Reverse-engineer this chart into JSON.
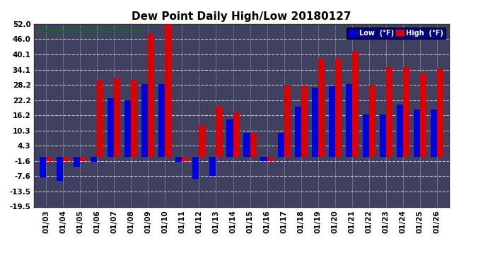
{
  "title": "Dew Point Daily High/Low 20180127",
  "copyright": "Copyright 2018 Cartronics.com",
  "dates": [
    "01/03",
    "01/04",
    "01/05",
    "01/06",
    "01/07",
    "01/08",
    "01/09",
    "01/10",
    "01/11",
    "01/12",
    "01/13",
    "01/14",
    "01/15",
    "01/16",
    "01/17",
    "01/18",
    "01/19",
    "01/20",
    "01/21",
    "01/22",
    "01/23",
    "01/24",
    "01/25",
    "01/26"
  ],
  "low": [
    -8.0,
    -9.5,
    -4.0,
    -2.0,
    23.0,
    22.0,
    28.5,
    28.5,
    -2.0,
    -8.5,
    -7.5,
    14.5,
    9.5,
    -1.6,
    9.5,
    19.5,
    27.0,
    27.5,
    28.5,
    16.5,
    16.5,
    20.5,
    18.5,
    18.5
  ],
  "high": [
    -1.6,
    -1.6,
    -1.6,
    30.0,
    31.0,
    30.0,
    48.0,
    52.0,
    -1.6,
    12.5,
    20.0,
    17.5,
    9.5,
    -1.6,
    28.2,
    28.0,
    38.5,
    38.5,
    41.5,
    28.2,
    35.0,
    35.0,
    33.0,
    34.5
  ],
  "ylim": [
    -19.5,
    52.0
  ],
  "yticks": [
    52.0,
    46.0,
    40.1,
    34.1,
    28.2,
    22.2,
    16.2,
    10.3,
    4.3,
    -1.6,
    -7.6,
    -13.5,
    -19.5
  ],
  "bar_width": 0.38,
  "low_color": "#0000dd",
  "high_color": "#dd0000",
  "plot_bg_color": "#404060",
  "fig_bg_color": "#ffffff",
  "grid_color": "#ffffff",
  "title_fontsize": 11,
  "label_fontsize": 7.5,
  "copyright_fontsize": 7
}
